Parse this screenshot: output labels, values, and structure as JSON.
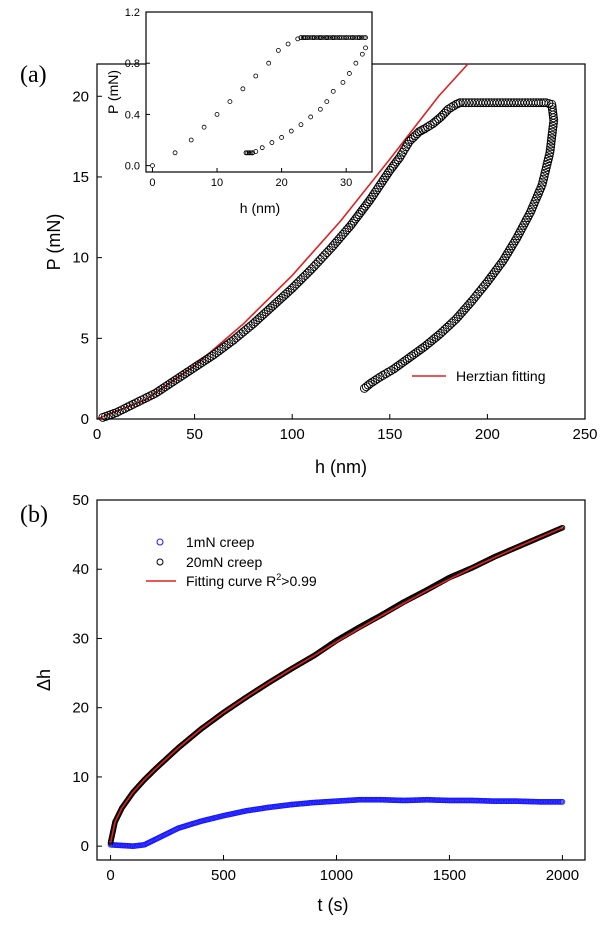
{
  "chart_data": [
    {
      "panel": "(a)",
      "type": "scatter",
      "xlabel": "h (nm)",
      "ylabel": "P (mN)",
      "xlim": [
        0,
        250
      ],
      "ylim": [
        0,
        22
      ],
      "xticks": [
        "0",
        "50",
        "100",
        "150",
        "200",
        "250"
      ],
      "yticks": [
        "0",
        "5",
        "10",
        "15",
        "20"
      ],
      "legend": {
        "position": "bottom-right",
        "entries": [
          "Herztian fitting"
        ]
      },
      "series": [
        {
          "marker": "circle",
          "color": "#000000",
          "x": [
            3,
            10,
            20,
            30,
            40,
            50,
            60,
            70,
            80,
            90,
            100,
            110,
            120,
            130,
            135,
            140,
            145,
            150,
            155,
            160,
            165,
            168,
            172,
            176,
            180,
            184,
            186,
            195,
            205,
            215,
            225,
            230,
            233,
            234,
            232,
            228,
            222,
            215,
            208,
            200,
            192,
            184,
            176,
            168,
            160,
            152,
            145,
            140,
            137
          ],
          "y": [
            0.1,
            0.4,
            1.0,
            1.6,
            2.4,
            3.2,
            4.0,
            4.9,
            5.9,
            7.0,
            8.1,
            9.3,
            10.6,
            12.0,
            12.8,
            13.6,
            14.5,
            15.4,
            16.2,
            17.2,
            17.8,
            18.0,
            18.3,
            18.7,
            19.2,
            19.5,
            19.6,
            19.6,
            19.6,
            19.6,
            19.6,
            19.6,
            19.5,
            18.5,
            16.5,
            14.5,
            12.8,
            11.2,
            9.8,
            8.5,
            7.3,
            6.2,
            5.3,
            4.5,
            3.8,
            3.1,
            2.6,
            2.2,
            1.9
          ]
        },
        {
          "name": "Herztian fitting",
          "line": true,
          "color": "#e02020",
          "x": [
            0,
            25,
            50,
            75,
            100,
            125,
            150,
            175,
            190
          ],
          "y": [
            0,
            1.2,
            3.3,
            5.9,
            8.9,
            12.3,
            16.1,
            20.0,
            22.0
          ]
        }
      ],
      "inset": {
        "type": "scatter",
        "xlabel": "h (nm)",
        "ylabel": "P (mN)",
        "xlim": [
          -1,
          34
        ],
        "ylim": [
          -0.05,
          1.2
        ],
        "xticks": [
          "0",
          "10",
          "20",
          "30"
        ],
        "yticks": [
          "0.0",
          "0.4",
          "0.8",
          "1.2"
        ],
        "series": [
          {
            "marker": "circle",
            "color": "#000000",
            "x": [
              0,
              3.5,
              6,
              8,
              10,
              12,
              14,
              16,
              18,
              19.5,
              21,
              22.5,
              23,
              23.5,
              24,
              25,
              26,
              27,
              28,
              29,
              30,
              31,
              32,
              33,
              33,
              32.5,
              31.5,
              30.5,
              29.5,
              28,
              27,
              26,
              24.5,
              23,
              21.5,
              20,
              18.5,
              17,
              16,
              15.5,
              15,
              14.5
            ],
            "y": [
              0.0,
              0.1,
              0.2,
              0.3,
              0.4,
              0.5,
              0.6,
              0.7,
              0.8,
              0.9,
              0.95,
              0.99,
              1.0,
              1.0,
              1.0,
              1.0,
              1.0,
              1.0,
              1.0,
              1.0,
              1.0,
              1.0,
              1.0,
              1.0,
              0.92,
              0.87,
              0.8,
              0.72,
              0.65,
              0.58,
              0.5,
              0.44,
              0.38,
              0.32,
              0.27,
              0.22,
              0.18,
              0.14,
              0.11,
              0.1,
              0.1,
              0.1
            ]
          }
        ]
      }
    },
    {
      "panel": "(b)",
      "type": "scatter",
      "xlabel": "t (s)",
      "ylabel": "Δh",
      "xlim": [
        -60,
        2100
      ],
      "ylim": [
        -2,
        50
      ],
      "xticks": [
        "0",
        "500",
        "1000",
        "1500",
        "2000"
      ],
      "yticks": [
        "0",
        "10",
        "20",
        "30",
        "40",
        "50"
      ],
      "legend": {
        "position": "top-left",
        "entries": [
          "1mN creep",
          "20mN creep",
          "Fitting curve R",
          "2",
          ">0.99"
        ]
      },
      "series": [
        {
          "name": "1mN creep",
          "marker": "circle",
          "color": "#1a1aff",
          "x": [
            0,
            50,
            100,
            150,
            200,
            250,
            300,
            400,
            500,
            600,
            700,
            800,
            900,
            1000,
            1100,
            1200,
            1300,
            1400,
            1500,
            1600,
            1700,
            1800,
            1900,
            2000
          ],
          "y": [
            0.2,
            0.1,
            0.0,
            0.2,
            1.0,
            1.8,
            2.6,
            3.6,
            4.4,
            5.1,
            5.6,
            6.0,
            6.3,
            6.5,
            6.7,
            6.7,
            6.6,
            6.7,
            6.6,
            6.6,
            6.5,
            6.5,
            6.4,
            6.4
          ]
        },
        {
          "name": "20mN creep",
          "marker": "circle",
          "color": "#000000",
          "x": [
            0,
            20,
            50,
            100,
            150,
            200,
            300,
            400,
            500,
            600,
            700,
            800,
            900,
            1000,
            1100,
            1200,
            1300,
            1400,
            1500,
            1600,
            1700,
            1800,
            1900,
            2000
          ],
          "y": [
            0.5,
            3.5,
            5.5,
            7.8,
            9.6,
            11.2,
            14.2,
            16.9,
            19.3,
            21.5,
            23.6,
            25.6,
            27.5,
            29.7,
            31.6,
            33.4,
            35.3,
            37.0,
            38.8,
            40.2,
            41.8,
            43.2,
            44.6,
            46.0
          ]
        },
        {
          "name": "Fitting curve R2>0.99",
          "line": true,
          "color": "#e02020",
          "x": [
            0,
            20,
            50,
            100,
            150,
            200,
            300,
            400,
            500,
            600,
            700,
            800,
            900,
            1000,
            1200,
            1400,
            1600,
            1800,
            2000
          ],
          "y": [
            0.5,
            3.5,
            5.5,
            7.8,
            9.6,
            11.2,
            14.2,
            16.9,
            19.3,
            21.5,
            23.6,
            25.6,
            27.5,
            29.5,
            33.3,
            36.9,
            40.2,
            43.2,
            46.0
          ]
        }
      ]
    }
  ]
}
